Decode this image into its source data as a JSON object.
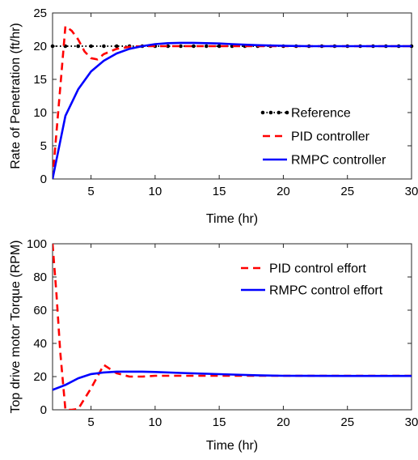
{
  "chart_data": [
    {
      "type": "line",
      "xlabel": "Time (hr)",
      "ylabel": "Rate of Penetration (ft/hr)",
      "xlim": [
        2,
        30
      ],
      "ylim": [
        0,
        25
      ],
      "xticks": [
        5,
        10,
        15,
        20,
        25,
        30
      ],
      "yticks": [
        0,
        5,
        10,
        15,
        20,
        25
      ],
      "grid": false,
      "legend_position": "bottom-right",
      "series": [
        {
          "name": "Reference",
          "color": "#000000",
          "style": "dotted-markers",
          "x": [
            2,
            3,
            4,
            5,
            6,
            7,
            8,
            9,
            10,
            11,
            12,
            13,
            14,
            15,
            16,
            17,
            18,
            19,
            20,
            21,
            22,
            23,
            24,
            25,
            26,
            27,
            28,
            29,
            30
          ],
          "y": [
            20,
            20,
            20,
            20,
            20,
            20,
            20,
            20,
            20,
            20,
            20,
            20,
            20,
            20,
            20,
            20,
            20,
            20,
            20,
            20,
            20,
            20,
            20,
            20,
            20,
            20,
            20,
            20,
            20
          ]
        },
        {
          "name": "PID controller",
          "color": "#ff0000",
          "style": "dashed",
          "x": [
            2,
            3,
            3.5,
            4,
            4.5,
            5,
            5.5,
            6,
            7,
            8,
            9,
            10,
            12,
            15,
            20,
            25,
            30
          ],
          "y": [
            0,
            23,
            22.3,
            21,
            19.2,
            18.2,
            18,
            18.8,
            19.6,
            19.9,
            20,
            20,
            20,
            20,
            20,
            20,
            20
          ]
        },
        {
          "name": "RMPC controller",
          "color": "#0000ff",
          "style": "solid",
          "x": [
            2,
            3,
            4,
            5,
            6,
            7,
            8,
            9,
            10,
            11,
            12,
            13,
            14,
            15,
            16,
            18,
            20,
            22,
            25,
            30
          ],
          "y": [
            0,
            9.5,
            13.5,
            16.2,
            17.8,
            18.9,
            19.6,
            20,
            20.3,
            20.45,
            20.5,
            20.5,
            20.45,
            20.4,
            20.3,
            20.15,
            20.05,
            20,
            20,
            20
          ]
        }
      ]
    },
    {
      "type": "line",
      "xlabel": "Time (hr)",
      "ylabel": "Top drive motor Torque (RPM)",
      "xlim": [
        2,
        30
      ],
      "ylim": [
        0,
        100
      ],
      "xticks": [
        5,
        10,
        15,
        20,
        25,
        30
      ],
      "yticks": [
        0,
        20,
        40,
        60,
        80,
        100
      ],
      "grid": false,
      "legend_position": "top-right",
      "series": [
        {
          "name": "PID control effort",
          "color": "#ff0000",
          "style": "dashed",
          "x": [
            2,
            2.3,
            2.6,
            3,
            3.5,
            4,
            5,
            6,
            7,
            8,
            9,
            10,
            12,
            15,
            20,
            25,
            30
          ],
          "y": [
            100,
            70,
            35,
            0,
            0,
            0.5,
            13,
            27,
            22,
            20,
            20,
            20.5,
            20.5,
            20.5,
            20.5,
            20.5,
            20.5
          ]
        },
        {
          "name": "RMPC control effort",
          "color": "#0000ff",
          "style": "solid",
          "x": [
            2,
            3,
            4,
            5,
            6,
            7,
            8,
            9,
            10,
            12,
            14,
            16,
            18,
            20,
            25,
            30
          ],
          "y": [
            12,
            15,
            19,
            21.5,
            22.5,
            23,
            23,
            23,
            22.8,
            22.2,
            21.7,
            21.2,
            20.8,
            20.5,
            20.4,
            20.4
          ]
        }
      ]
    }
  ]
}
